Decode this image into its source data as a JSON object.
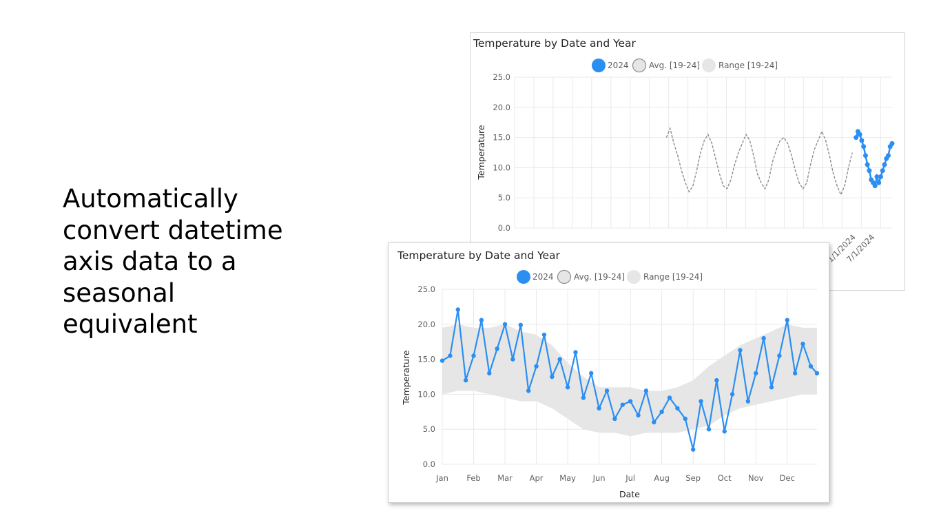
{
  "slide": {
    "headline_lines": [
      "Automatically",
      "convert datetime",
      "axis data to a",
      "seasonal",
      "equivalent"
    ]
  },
  "colors": {
    "series_2024": "#2b8ef1",
    "avg": "#8c8c8c",
    "range": "#e6e6e6",
    "gridline": "#e9e9e9"
  },
  "chart_data": [
    {
      "type": "line",
      "id": "datetime-axis-chart",
      "title": "Temperature by Date and Year",
      "ylabel": "Temperature",
      "xlabel": "",
      "ylim": [
        0,
        25
      ],
      "yticks": [
        "0.0",
        "5.0",
        "10.0",
        "15.0",
        "20.0",
        "25.0"
      ],
      "xticks_visible": [
        "1/1/2024",
        "7/1/2024"
      ],
      "legend": [
        {
          "name": "2024",
          "style": "filled-circle"
        },
        {
          "name": "Avg. [19-24]",
          "style": "outline-circle"
        },
        {
          "name": "Range [19-24]",
          "style": "light-circle"
        }
      ],
      "legend_position": "top-center",
      "grid": true,
      "series": [
        {
          "name": "Avg. [19-24]",
          "style": "dashed",
          "note_x": "years",
          "x": [
            2019.0,
            2019.1,
            2019.2,
            2019.3,
            2019.4,
            2019.5,
            2019.6,
            2019.7,
            2019.8,
            2019.9,
            2020.0,
            2020.1,
            2020.2,
            2020.3,
            2020.4,
            2020.5,
            2020.6,
            2020.7,
            2020.8,
            2020.9,
            2021.0,
            2021.1,
            2021.2,
            2021.3,
            2021.4,
            2021.5,
            2021.6,
            2021.7,
            2021.8,
            2021.9,
            2022.0,
            2022.1,
            2022.2,
            2022.3,
            2022.4,
            2022.5,
            2022.6,
            2022.7,
            2022.8,
            2022.9,
            2023.0,
            2023.1,
            2023.2,
            2023.3,
            2023.4,
            2023.5,
            2023.6,
            2023.7,
            2023.8,
            2023.9
          ],
          "values": [
            15.0,
            16.5,
            14.0,
            12.0,
            9.5,
            7.5,
            6.0,
            7.0,
            9.5,
            12.5,
            14.5,
            15.5,
            14.0,
            11.5,
            9.0,
            7.0,
            6.5,
            8.0,
            10.5,
            12.5,
            14.0,
            15.5,
            14.5,
            12.0,
            9.0,
            7.5,
            6.5,
            8.0,
            11.0,
            13.0,
            14.5,
            15.0,
            14.0,
            12.0,
            9.5,
            7.5,
            6.5,
            7.5,
            10.5,
            13.0,
            14.5,
            16.0,
            14.5,
            12.0,
            9.0,
            7.0,
            5.5,
            7.0,
            10.0,
            12.5
          ]
        },
        {
          "name": "2024",
          "style": "solid-markers",
          "note_x": "years",
          "x": [
            2024.0,
            2024.05,
            2024.1,
            2024.15,
            2024.2,
            2024.25,
            2024.3,
            2024.35,
            2024.4,
            2024.45,
            2024.5,
            2024.55,
            2024.6,
            2024.65,
            2024.7,
            2024.75,
            2024.8,
            2024.85,
            2024.9,
            2024.95
          ],
          "values": [
            15.0,
            16.0,
            15.5,
            14.5,
            13.5,
            12.0,
            10.5,
            9.5,
            8.0,
            7.5,
            7.0,
            8.5,
            7.5,
            8.5,
            9.5,
            10.5,
            11.5,
            12.0,
            13.5,
            14.0
          ]
        }
      ]
    },
    {
      "type": "line",
      "id": "seasonal-axis-chart",
      "title": "Temperature by Date and Year",
      "xlabel": "Date",
      "ylabel": "Temperature",
      "ylim": [
        0,
        25
      ],
      "yticks": [
        "0.0",
        "5.0",
        "10.0",
        "15.0",
        "20.0",
        "25.0"
      ],
      "categories": [
        "Jan",
        "Feb",
        "Mar",
        "Apr",
        "May",
        "Jun",
        "Jul",
        "Aug",
        "Sep",
        "Oct",
        "Nov",
        "Dec"
      ],
      "legend": [
        {
          "name": "2024",
          "style": "filled-circle"
        },
        {
          "name": "Avg. [19-24]",
          "style": "outline-circle"
        },
        {
          "name": "Range [19-24]",
          "style": "light-circle"
        }
      ],
      "legend_position": "top-center",
      "grid": true,
      "series": [
        {
          "name": "Range [19-24]",
          "style": "band",
          "note_x": "month",
          "x": [
            1.0,
            1.5,
            2.0,
            2.5,
            3.0,
            3.5,
            4.0,
            4.5,
            5.0,
            5.5,
            6.0,
            6.5,
            7.0,
            7.5,
            8.0,
            8.5,
            9.0,
            9.5,
            10.0,
            10.5,
            11.0,
            11.5,
            12.0,
            12.5,
            12.95
          ],
          "low": [
            10.0,
            10.5,
            10.5,
            10.0,
            9.5,
            9.0,
            9.0,
            8.0,
            6.5,
            5.0,
            4.5,
            4.5,
            4.0,
            4.5,
            4.5,
            4.5,
            5.0,
            5.5,
            7.0,
            8.0,
            8.5,
            9.0,
            9.5,
            10.0,
            10.0
          ],
          "high": [
            19.5,
            20.0,
            19.5,
            19.5,
            20.0,
            19.0,
            18.5,
            17.0,
            14.5,
            12.5,
            11.0,
            11.0,
            11.0,
            10.5,
            10.5,
            11.0,
            12.0,
            14.0,
            15.5,
            17.0,
            18.0,
            19.0,
            20.0,
            19.5,
            19.5
          ]
        },
        {
          "name": "2024",
          "style": "solid-markers",
          "note_x": "month",
          "x": [
            1.0,
            1.25,
            1.5,
            1.75,
            2.0,
            2.25,
            2.5,
            2.75,
            3.0,
            3.25,
            3.5,
            3.75,
            4.0,
            4.25,
            4.5,
            4.75,
            5.0,
            5.25,
            5.5,
            5.75,
            6.0,
            6.25,
            6.5,
            6.75,
            7.0,
            7.25,
            7.5,
            7.75,
            8.0,
            8.25,
            8.5,
            8.75,
            9.0,
            9.25,
            9.5,
            9.75,
            10.0,
            10.25,
            10.5,
            10.75,
            11.0,
            11.25,
            11.5,
            11.75,
            12.0,
            12.25,
            12.5,
            12.75,
            12.95
          ],
          "values": [
            14.8,
            15.5,
            22.1,
            12.0,
            15.5,
            20.6,
            13.0,
            16.5,
            20.0,
            15.0,
            19.9,
            10.5,
            14.0,
            18.5,
            12.5,
            15.0,
            11.0,
            16.0,
            9.5,
            13.0,
            8.0,
            10.5,
            6.5,
            8.5,
            9.0,
            7.0,
            10.5,
            6.0,
            7.5,
            9.5,
            8.0,
            6.5,
            2.1,
            9.0,
            5.0,
            12.0,
            4.7,
            10.0,
            16.3,
            9.0,
            13.0,
            18.0,
            11.0,
            15.5,
            20.6,
            13.0,
            17.2,
            14.0,
            13.0
          ]
        }
      ]
    }
  ]
}
